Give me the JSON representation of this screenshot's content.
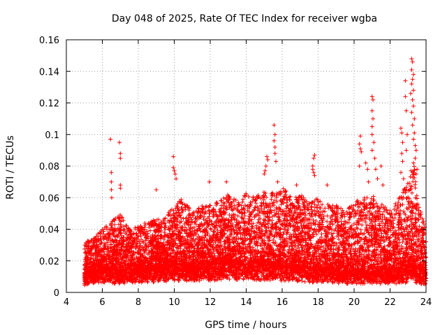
{
  "chart_data": {
    "type": "scatter",
    "title": "Day 048 of 2025, Rate Of TEC Index for receiver wgba",
    "xlabel": "GPS time / hours",
    "ylabel": "ROTI / TECUs",
    "xlim": [
      4,
      24
    ],
    "ylim": [
      0,
      0.16
    ],
    "xticks": [
      "4",
      "6",
      "8",
      "10",
      "12",
      "14",
      "16",
      "18",
      "20",
      "22",
      "24"
    ],
    "yticks": [
      "0",
      "0.02",
      "0.04",
      "0.06",
      "0.08",
      "0.1",
      "0.12",
      "0.14",
      "0.16"
    ],
    "grid": true,
    "marker": "+",
    "color": "#ff0000",
    "x_range_of_data": [
      5.0,
      24.0
    ],
    "envelope": {
      "hours": [
        5.0,
        5.5,
        6.0,
        6.5,
        7.0,
        7.5,
        8.0,
        8.5,
        9.0,
        9.5,
        10.0,
        10.5,
        11.0,
        11.5,
        12.0,
        12.5,
        13.0,
        13.5,
        14.0,
        14.5,
        15.0,
        15.5,
        16.0,
        16.5,
        17.0,
        17.5,
        18.0,
        18.5,
        19.0,
        19.5,
        20.0,
        20.5,
        21.0,
        21.5,
        22.0,
        22.5,
        23.0,
        23.3,
        23.5,
        24.0
      ],
      "baseline": [
        0.01,
        0.012,
        0.013,
        0.012,
        0.012,
        0.013,
        0.013,
        0.014,
        0.014,
        0.015,
        0.016,
        0.015,
        0.015,
        0.016,
        0.016,
        0.017,
        0.018,
        0.017,
        0.017,
        0.017,
        0.016,
        0.016,
        0.016,
        0.015,
        0.015,
        0.014,
        0.014,
        0.013,
        0.013,
        0.012,
        0.012,
        0.012,
        0.012,
        0.012,
        0.012,
        0.012,
        0.014,
        0.016,
        0.012,
        0.01
      ],
      "upper": [
        0.032,
        0.034,
        0.04,
        0.045,
        0.05,
        0.04,
        0.042,
        0.045,
        0.046,
        0.048,
        0.055,
        0.06,
        0.05,
        0.055,
        0.055,
        0.058,
        0.062,
        0.058,
        0.065,
        0.06,
        0.065,
        0.063,
        0.068,
        0.06,
        0.062,
        0.058,
        0.06,
        0.056,
        0.056,
        0.052,
        0.058,
        0.06,
        0.062,
        0.056,
        0.052,
        0.06,
        0.07,
        0.085,
        0.06,
        0.04
      ]
    },
    "outliers": [
      {
        "x": 6.45,
        "y": 0.097
      },
      {
        "x": 6.5,
        "y": 0.076
      },
      {
        "x": 6.5,
        "y": 0.07
      },
      {
        "x": 6.5,
        "y": 0.065
      },
      {
        "x": 6.52,
        "y": 0.06
      },
      {
        "x": 6.95,
        "y": 0.095
      },
      {
        "x": 7.0,
        "y": 0.088
      },
      {
        "x": 7.0,
        "y": 0.085
      },
      {
        "x": 7.0,
        "y": 0.068
      },
      {
        "x": 7.0,
        "y": 0.066
      },
      {
        "x": 9.0,
        "y": 0.065
      },
      {
        "x": 9.95,
        "y": 0.086
      },
      {
        "x": 9.95,
        "y": 0.079
      },
      {
        "x": 10.0,
        "y": 0.077
      },
      {
        "x": 10.05,
        "y": 0.075
      },
      {
        "x": 10.1,
        "y": 0.072
      },
      {
        "x": 11.95,
        "y": 0.07
      },
      {
        "x": 12.9,
        "y": 0.07
      },
      {
        "x": 15.15,
        "y": 0.086
      },
      {
        "x": 15.2,
        "y": 0.084
      },
      {
        "x": 15.1,
        "y": 0.08
      },
      {
        "x": 15.05,
        "y": 0.077
      },
      {
        "x": 15.0,
        "y": 0.075
      },
      {
        "x": 15.55,
        "y": 0.106
      },
      {
        "x": 15.6,
        "y": 0.1
      },
      {
        "x": 15.55,
        "y": 0.096
      },
      {
        "x": 15.6,
        "y": 0.092
      },
      {
        "x": 15.6,
        "y": 0.088
      },
      {
        "x": 15.65,
        "y": 0.083
      },
      {
        "x": 15.75,
        "y": 0.07
      },
      {
        "x": 16.8,
        "y": 0.068
      },
      {
        "x": 17.8,
        "y": 0.087
      },
      {
        "x": 17.75,
        "y": 0.085
      },
      {
        "x": 17.7,
        "y": 0.08
      },
      {
        "x": 17.7,
        "y": 0.078
      },
      {
        "x": 17.75,
        "y": 0.076
      },
      {
        "x": 17.8,
        "y": 0.074
      },
      {
        "x": 18.5,
        "y": 0.068
      },
      {
        "x": 20.35,
        "y": 0.099
      },
      {
        "x": 20.3,
        "y": 0.094
      },
      {
        "x": 20.35,
        "y": 0.091
      },
      {
        "x": 20.4,
        "y": 0.089
      },
      {
        "x": 20.3,
        "y": 0.08
      },
      {
        "x": 20.65,
        "y": 0.082
      },
      {
        "x": 20.75,
        "y": 0.078
      },
      {
        "x": 20.8,
        "y": 0.07
      },
      {
        "x": 21.0,
        "y": 0.124
      },
      {
        "x": 21.05,
        "y": 0.122
      },
      {
        "x": 21.0,
        "y": 0.115
      },
      {
        "x": 21.05,
        "y": 0.11
      },
      {
        "x": 21.0,
        "y": 0.105
      },
      {
        "x": 21.0,
        "y": 0.1
      },
      {
        "x": 21.1,
        "y": 0.095
      },
      {
        "x": 21.0,
        "y": 0.09
      },
      {
        "x": 21.15,
        "y": 0.085
      },
      {
        "x": 21.2,
        "y": 0.078
      },
      {
        "x": 21.5,
        "y": 0.08
      },
      {
        "x": 21.3,
        "y": 0.072
      },
      {
        "x": 21.6,
        "y": 0.068
      },
      {
        "x": 22.6,
        "y": 0.104
      },
      {
        "x": 22.65,
        "y": 0.101
      },
      {
        "x": 22.7,
        "y": 0.095
      },
      {
        "x": 22.65,
        "y": 0.088
      },
      {
        "x": 22.7,
        "y": 0.083
      },
      {
        "x": 22.6,
        "y": 0.076
      },
      {
        "x": 22.75,
        "y": 0.072
      },
      {
        "x": 22.85,
        "y": 0.134
      },
      {
        "x": 22.85,
        "y": 0.124
      },
      {
        "x": 22.9,
        "y": 0.115
      },
      {
        "x": 22.95,
        "y": 0.1
      },
      {
        "x": 22.9,
        "y": 0.09
      },
      {
        "x": 23.2,
        "y": 0.148
      },
      {
        "x": 23.25,
        "y": 0.146
      },
      {
        "x": 23.2,
        "y": 0.141
      },
      {
        "x": 23.3,
        "y": 0.138
      },
      {
        "x": 23.25,
        "y": 0.135
      },
      {
        "x": 23.2,
        "y": 0.132
      },
      {
        "x": 23.3,
        "y": 0.128
      },
      {
        "x": 23.15,
        "y": 0.126
      },
      {
        "x": 23.25,
        "y": 0.122
      },
      {
        "x": 23.3,
        "y": 0.118
      },
      {
        "x": 23.2,
        "y": 0.114
      },
      {
        "x": 23.35,
        "y": 0.11
      },
      {
        "x": 23.25,
        "y": 0.106
      },
      {
        "x": 23.35,
        "y": 0.101
      },
      {
        "x": 23.3,
        "y": 0.097
      },
      {
        "x": 23.4,
        "y": 0.093
      },
      {
        "x": 23.45,
        "y": 0.09
      },
      {
        "x": 23.4,
        "y": 0.085
      },
      {
        "x": 23.3,
        "y": 0.082
      },
      {
        "x": 23.5,
        "y": 0.078
      },
      {
        "x": 23.45,
        "y": 0.075
      }
    ]
  }
}
